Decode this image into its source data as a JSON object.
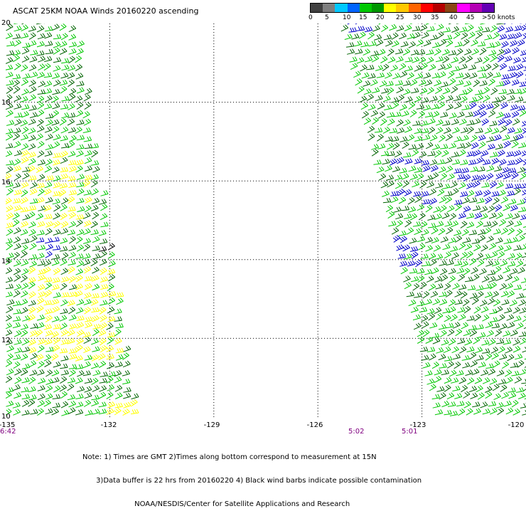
{
  "title": "ASCAT 25KM NOAA Winds 20160220 ascending",
  "legend": {
    "colors": [
      "#404040",
      "#7f7f7f",
      "#00c8ff",
      "#0064ff",
      "#00c800",
      "#009600",
      "#ffff00",
      "#ffc800",
      "#ff6400",
      "#ff0000",
      "#b40000",
      "#8b4513",
      "#ff00ff",
      "#b400b4",
      "#6400b4"
    ],
    "labels": [
      "0",
      "5",
      "10",
      "15",
      "20",
      "25",
      "30",
      "35",
      "40",
      "45",
      ">50 knots"
    ]
  },
  "map": {
    "lon_range": [
      -135,
      -120
    ],
    "lat_range": [
      10,
      20
    ],
    "lon_ticks": [
      "-135",
      "-132",
      "-129",
      "-126",
      "-123",
      "-120"
    ],
    "lat_ticks": [
      "20",
      "18",
      "16",
      "14",
      "12",
      "10"
    ],
    "swath_times": [
      {
        "label": "6:42",
        "lon": -135
      },
      {
        "label": "5:02",
        "lon": -124.8
      },
      {
        "label": "5:01",
        "lon": -123.5
      }
    ],
    "barb_colors": {
      "light_green": "#00c800",
      "dark_green": "#006400",
      "yellow": "#ffff00",
      "blue": "#0000c8",
      "black": "#000000"
    }
  },
  "notes": [
    "Note: 1) Times are GMT 2)Times along bottom correspond to measurement at 15N",
    "      3)Data buffer is 22 hrs from 20160220 4) Black wind barbs indicate possible contamination",
    "                       NOAA/NESDIS/Center for Satellite Applications and Research"
  ]
}
